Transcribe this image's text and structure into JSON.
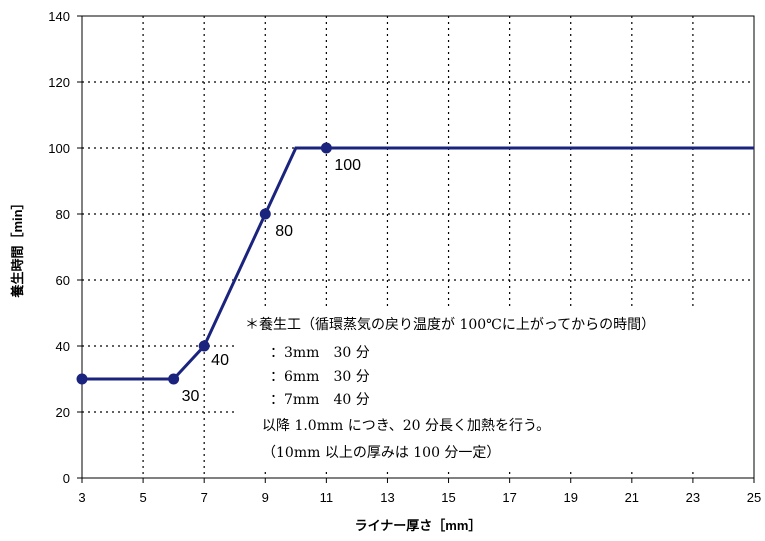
{
  "chart_data": {
    "type": "line",
    "xlabel": "ライナー厚さ［mm］",
    "ylabel": "養生時間［min］",
    "xlim": [
      3,
      25
    ],
    "ylim": [
      0,
      140
    ],
    "xticks": [
      3,
      5,
      7,
      9,
      11,
      13,
      15,
      17,
      19,
      21,
      23,
      25
    ],
    "yticks": [
      0,
      20,
      40,
      60,
      80,
      100,
      120,
      140
    ],
    "grid": "dotted",
    "line_color": "#1a237e",
    "series": [
      {
        "x": [
          3,
          6,
          7,
          9,
          10,
          11,
          25
        ],
        "y": [
          30,
          30,
          40,
          80,
          100,
          100,
          100
        ]
      }
    ],
    "markers": [
      {
        "x": 3,
        "y": 30
      },
      {
        "x": 6,
        "y": 30
      },
      {
        "x": 7,
        "y": 40
      },
      {
        "x": 9,
        "y": 80
      },
      {
        "x": 11,
        "y": 100
      }
    ],
    "data_labels": [
      {
        "x": 6,
        "y": 30,
        "text": "30"
      },
      {
        "x": 7,
        "y": 40,
        "text": "40"
      },
      {
        "x": 9,
        "y": 80,
        "text": "80"
      },
      {
        "x": 11,
        "y": 100,
        "text": "100"
      }
    ],
    "annotation": [
      "＊養生工（循環蒸気の戻り温度が 100℃に上がってからの時間）",
      "：3mm　30 分",
      "：6mm　30 分",
      "：7mm　40 分",
      "以降 1.0mm につき、20 分長く加熱を行う。",
      "（10mm 以上の厚みは 100 分一定）"
    ]
  }
}
